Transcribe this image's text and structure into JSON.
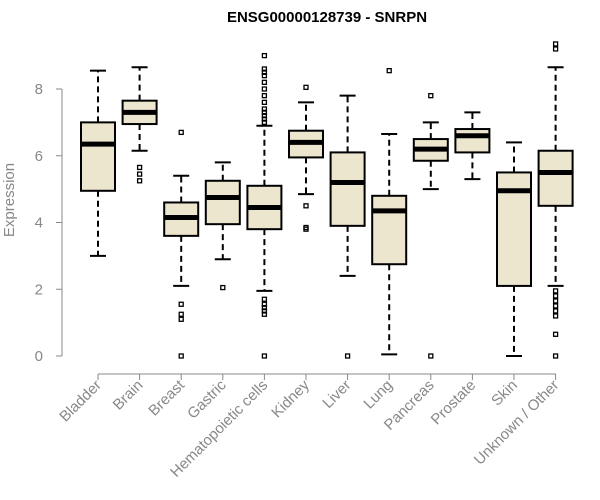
{
  "chart_data": {
    "type": "boxplot",
    "title": "ENSG00000128739 - SNRPN",
    "xlabel": "",
    "ylabel": "Expression",
    "ylim": [
      0,
      9.4
    ],
    "yticks": [
      0,
      2,
      4,
      6,
      8
    ],
    "grid": false,
    "fill_color": "#ede6cf",
    "categories": [
      "Bladder",
      "Brain",
      "Breast",
      "Gastric",
      "Hematopoietic cells",
      "Kidney",
      "Liver",
      "Lung",
      "Pancreas",
      "Prostate",
      "Skin",
      "Unknown / Other"
    ],
    "boxes": [
      {
        "name": "Bladder",
        "whislo": 3.0,
        "q1": 4.95,
        "med": 6.35,
        "q3": 7.0,
        "whishi": 8.55,
        "outliers": []
      },
      {
        "name": "Brain",
        "whislo": 6.15,
        "q1": 6.95,
        "med": 7.3,
        "q3": 7.65,
        "whishi": 8.65,
        "outliers": [
          5.65,
          5.45,
          5.25
        ]
      },
      {
        "name": "Breast",
        "whislo": 2.1,
        "q1": 3.6,
        "med": 4.15,
        "q3": 4.6,
        "whishi": 5.4,
        "outliers": [
          6.7,
          1.55,
          1.25,
          1.1,
          0.0
        ]
      },
      {
        "name": "Gastric",
        "whislo": 2.9,
        "q1": 3.95,
        "med": 4.75,
        "q3": 5.25,
        "whishi": 5.8,
        "outliers": [
          2.05
        ]
      },
      {
        "name": "Hematopoietic cells",
        "whislo": 1.95,
        "q1": 3.8,
        "med": 4.45,
        "q3": 5.1,
        "whishi": 6.9,
        "outliers": [
          9.0,
          8.6,
          8.5,
          8.4,
          8.2,
          8.0,
          7.8,
          7.6,
          7.4,
          7.3,
          7.2,
          7.1,
          7.0,
          1.7,
          1.55,
          1.45,
          1.35,
          1.25,
          0.0
        ]
      },
      {
        "name": "Kidney",
        "whislo": 4.85,
        "q1": 5.95,
        "med": 6.4,
        "q3": 6.75,
        "whishi": 7.6,
        "outliers": [
          8.05,
          4.5,
          3.85,
          3.8
        ]
      },
      {
        "name": "Liver",
        "whislo": 2.4,
        "q1": 3.9,
        "med": 5.2,
        "q3": 6.1,
        "whishi": 7.8,
        "outliers": [
          0.0
        ]
      },
      {
        "name": "Lung",
        "whislo": 0.05,
        "q1": 2.75,
        "med": 4.35,
        "q3": 4.8,
        "whishi": 6.65,
        "outliers": [
          8.55
        ]
      },
      {
        "name": "Pancreas",
        "whislo": 5.0,
        "q1": 5.85,
        "med": 6.2,
        "q3": 6.5,
        "whishi": 7.0,
        "outliers": [
          7.8,
          0.0
        ]
      },
      {
        "name": "Prostate",
        "whislo": 5.3,
        "q1": 6.1,
        "med": 6.6,
        "q3": 6.8,
        "whishi": 7.3,
        "outliers": []
      },
      {
        "name": "Skin",
        "whislo": 0.0,
        "q1": 2.1,
        "med": 4.95,
        "q3": 5.5,
        "whishi": 6.4,
        "outliers": []
      },
      {
        "name": "Unknown / Other",
        "whislo": 2.1,
        "q1": 4.5,
        "med": 5.5,
        "q3": 6.15,
        "whishi": 8.65,
        "outliers": [
          9.35,
          9.2,
          1.95,
          1.8,
          1.65,
          1.5,
          1.35,
          1.2,
          0.65,
          0.0
        ]
      }
    ]
  }
}
